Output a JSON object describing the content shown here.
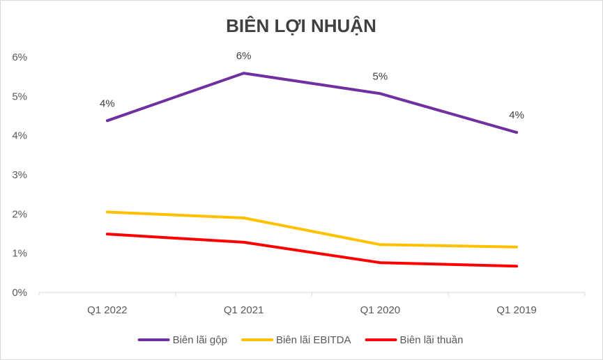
{
  "chart_data": {
    "type": "line",
    "title": "BIÊN LỢI NHUẬN",
    "categories": [
      "Q1 2022",
      "Q1 2021",
      "Q1 2020",
      "Q1 2019"
    ],
    "ylim": [
      0,
      0.06
    ],
    "yticks": [
      {
        "value": 0.0,
        "label": "0%"
      },
      {
        "value": 0.01,
        "label": "1%"
      },
      {
        "value": 0.02,
        "label": "2%"
      },
      {
        "value": 0.03,
        "label": "3%"
      },
      {
        "value": 0.04,
        "label": "4%"
      },
      {
        "value": 0.05,
        "label": "5%"
      },
      {
        "value": 0.06,
        "label": "6%"
      }
    ],
    "grid": false,
    "legend_position": "bottom",
    "series": [
      {
        "name": "Biên lãi gộp",
        "color": "#7030a0",
        "values": [
          0.0438,
          0.0559,
          0.0507,
          0.0408
        ],
        "data_labels": [
          "4%",
          "6%",
          "5%",
          "4%"
        ]
      },
      {
        "name": "Biên lãi EBITDA",
        "color": "#ffc000",
        "values": [
          0.0205,
          0.019,
          0.0122,
          0.0116
        ]
      },
      {
        "name": "Biên lãi thuần",
        "color": "#ff0000",
        "values": [
          0.0149,
          0.0128,
          0.0076,
          0.0067
        ]
      }
    ]
  }
}
